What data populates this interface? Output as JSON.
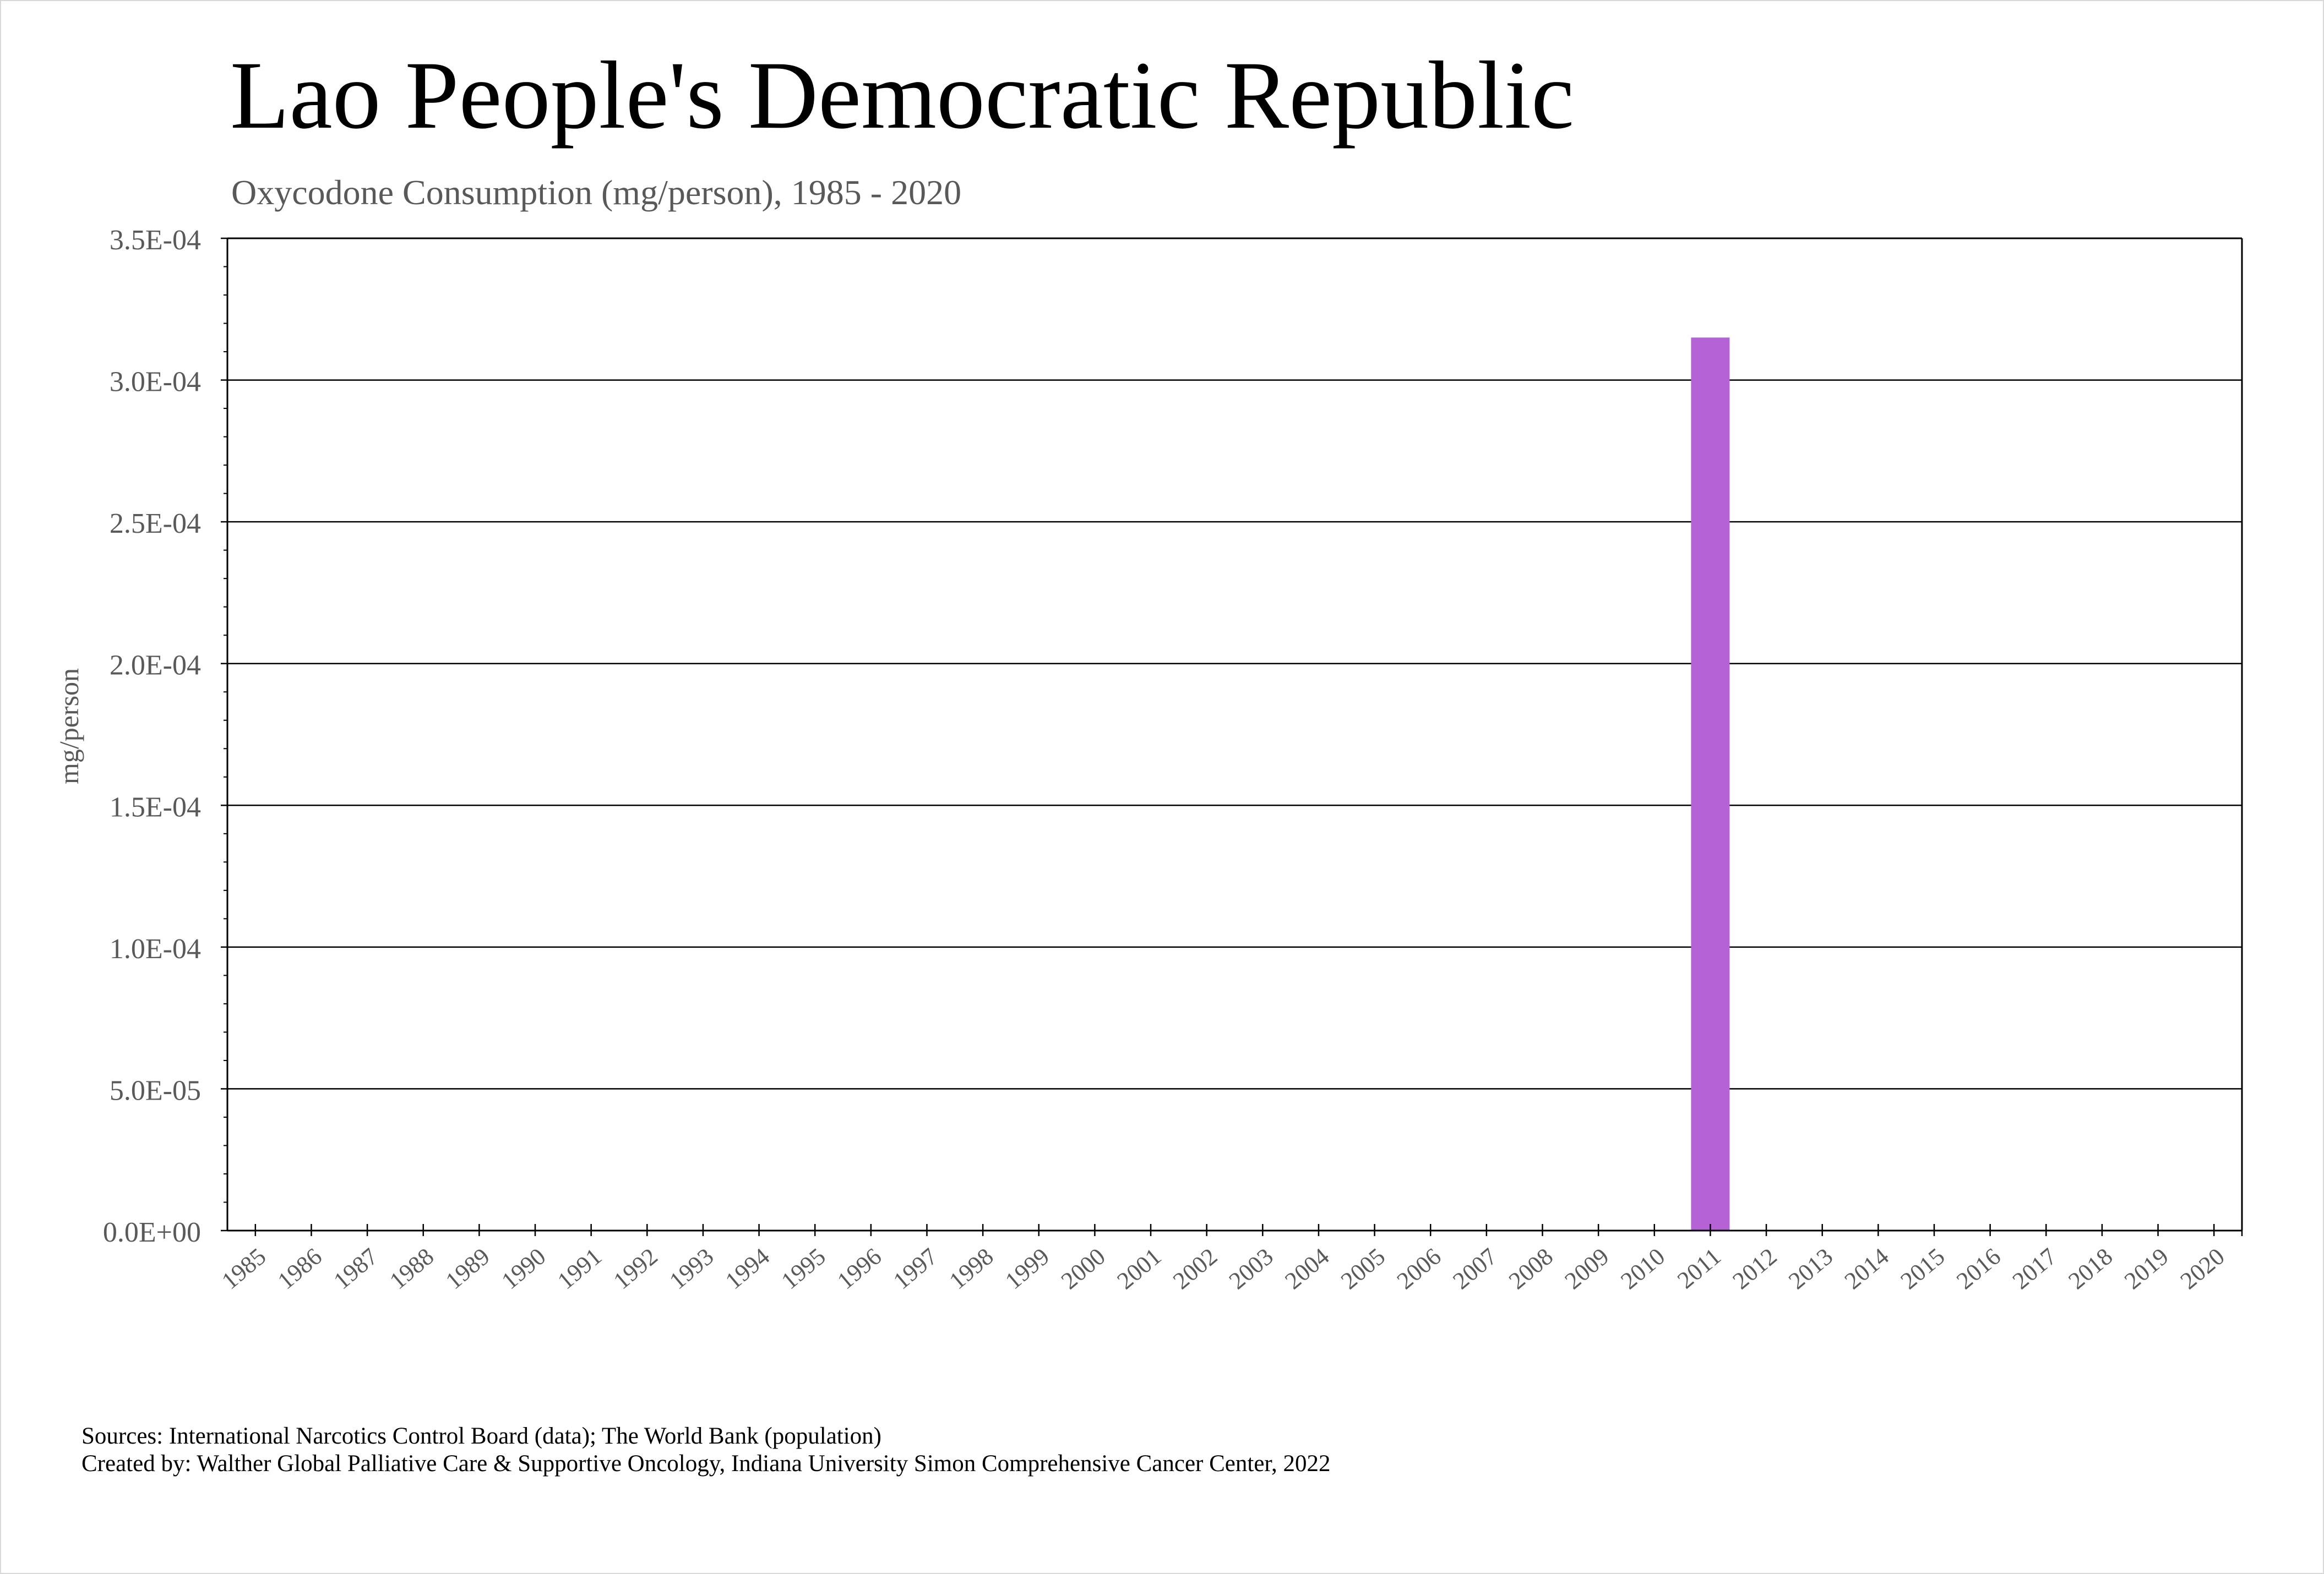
{
  "header": {
    "title": "Lao People's Democratic Republic",
    "subtitle": "Oxycodone Consumption (mg/person), 1985 - 2020"
  },
  "footer": {
    "sources": "Sources: International Narcotics Control Board (data); The World Bank (population)",
    "created_by": "Created by: Walther Global Palliative Care & Supportive Oncology, Indiana University Simon Comprehensive Cancer Center, 2022"
  },
  "chart_data": {
    "type": "bar",
    "title": "Lao People's Democratic Republic",
    "subtitle": "Oxycodone Consumption (mg/person), 1985 - 2020",
    "xlabel": "",
    "ylabel": "mg/person",
    "ylim": [
      0,
      0.00035
    ],
    "y_ticks": [
      "0.0E+00",
      "5.0E-05",
      "1.0E-04",
      "1.5E-04",
      "2.0E-04",
      "2.5E-04",
      "3.0E-04",
      "3.5E-04"
    ],
    "grid": true,
    "bar_color": "#b562d6",
    "categories": [
      "1985",
      "1986",
      "1987",
      "1988",
      "1989",
      "1990",
      "1991",
      "1992",
      "1993",
      "1994",
      "1995",
      "1996",
      "1997",
      "1998",
      "1999",
      "2000",
      "2001",
      "2002",
      "2003",
      "2004",
      "2005",
      "2006",
      "2007",
      "2008",
      "2009",
      "2010",
      "2011",
      "2012",
      "2013",
      "2014",
      "2015",
      "2016",
      "2017",
      "2018",
      "2019",
      "2020"
    ],
    "values": [
      0,
      0,
      0,
      0,
      0,
      0,
      0,
      0,
      0,
      0,
      0,
      0,
      0,
      0,
      0,
      0,
      0,
      0,
      0,
      0,
      0,
      0,
      0,
      0,
      0,
      0,
      0.000315,
      0,
      0,
      0,
      0,
      0,
      0,
      0,
      0,
      0
    ]
  }
}
